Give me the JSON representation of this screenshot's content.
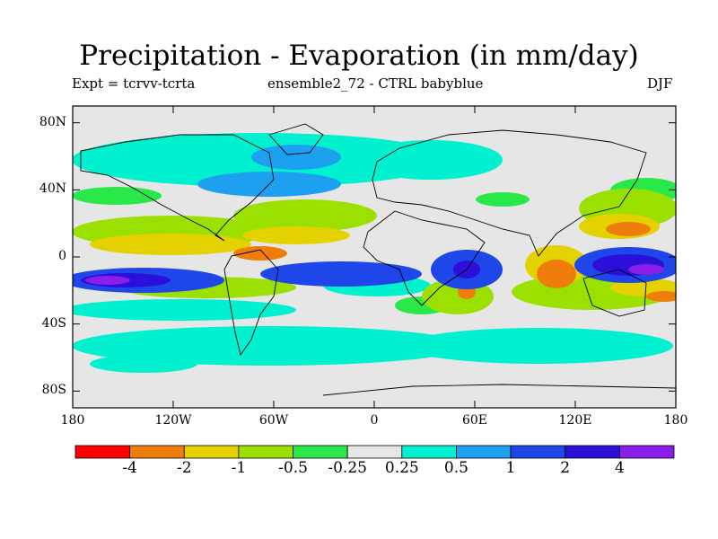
{
  "title": "Precipitation - Evaporation (in mm/day)",
  "experiment": "Expt = tcrvv-tcrta",
  "ensemble": "ensemble2_72 - CTRL babyblue",
  "season": "DJF",
  "lat_ticks": [
    {
      "label": "80N",
      "lat": 80
    },
    {
      "label": "40N",
      "lat": 40
    },
    {
      "label": "0",
      "lat": 0
    },
    {
      "label": "40S",
      "lat": -40
    },
    {
      "label": "80S",
      "lat": -80
    }
  ],
  "lon_ticks": [
    {
      "label": "180",
      "lon": -180
    },
    {
      "label": "120W",
      "lon": -120
    },
    {
      "label": "60W",
      "lon": -60
    },
    {
      "label": "0",
      "lon": 0
    },
    {
      "label": "60E",
      "lon": 60
    },
    {
      "label": "120E",
      "lon": 120
    },
    {
      "label": "180",
      "lon": 180
    }
  ],
  "colorbar": {
    "colors": [
      "#ff0000",
      "#ef7d0c",
      "#e3d200",
      "#9be000",
      "#2ae84a",
      "#e6e6e6",
      "#00f0d0",
      "#1ea0f0",
      "#1f46e8",
      "#2a10d8",
      "#8a1ee8"
    ],
    "labels": [
      "-4",
      "-2",
      "-1",
      "-0.5",
      "-0.25",
      "0.25",
      "0.5",
      "1",
      "2",
      "4"
    ]
  },
  "background_color": "#e6e6e6"
}
